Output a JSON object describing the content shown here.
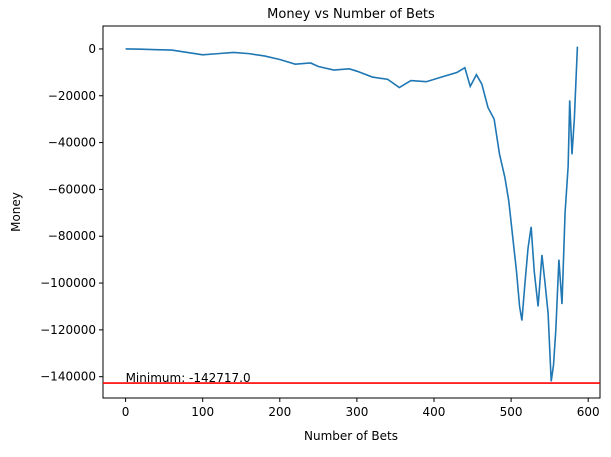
{
  "chart_data": {
    "type": "line",
    "title": "Money vs Number of Bets",
    "x_label": "Number of Bets",
    "y_label": "Money",
    "series": [
      {
        "color": "#1f77b4",
        "x": [
          0,
          20,
          40,
          60,
          80,
          100,
          120,
          140,
          160,
          180,
          200,
          220,
          240,
          250,
          270,
          290,
          300,
          320,
          340,
          355,
          370,
          390,
          410,
          430,
          440,
          447,
          455,
          462,
          470,
          478,
          485,
          492,
          497,
          502,
          507,
          511,
          514,
          518,
          522,
          526,
          530,
          535,
          540,
          544,
          548,
          552,
          555,
          558,
          562,
          566,
          570,
          574,
          576,
          579,
          582,
          586
        ],
        "values": [
          0,
          -100,
          -300,
          -500,
          -1500,
          -2500,
          -2000,
          -1500,
          -2000,
          -3000,
          -4500,
          -6500,
          -6000,
          -7500,
          -9000,
          -8500,
          -9500,
          -12000,
          -13000,
          -16500,
          -13500,
          -14000,
          -12000,
          -10000,
          -8000,
          -16000,
          -11000,
          -15000,
          -25000,
          -30000,
          -45000,
          -55000,
          -65000,
          -80000,
          -95000,
          -110000,
          -116000,
          -100000,
          -85000,
          -76000,
          -95000,
          -110000,
          -88000,
          -100000,
          -113000,
          -142000,
          -135000,
          -120000,
          -90000,
          -109000,
          -70000,
          -50000,
          -22000,
          -45000,
          -30000,
          1000
        ]
      }
    ],
    "hline": {
      "value": -142717,
      "color": "red",
      "label": "Minimum: -142717.0"
    },
    "xlim": [
      -29.3,
      615.3
    ],
    "ylim": [
      -149100,
      9800
    ],
    "xticks": [
      0,
      100,
      200,
      300,
      400,
      500,
      600
    ],
    "yticks": [
      0,
      {
        "value": -20000,
        "label": "−20000"
      },
      {
        "value": -40000,
        "label": "−40000"
      },
      {
        "value": -60000,
        "label": "−60000"
      },
      {
        "value": -80000,
        "label": "−80000"
      },
      {
        "value": -100000,
        "label": "−100000"
      },
      {
        "value": -120000,
        "label": "−120000"
      },
      {
        "value": -140000,
        "label": "−140000"
      }
    ]
  }
}
